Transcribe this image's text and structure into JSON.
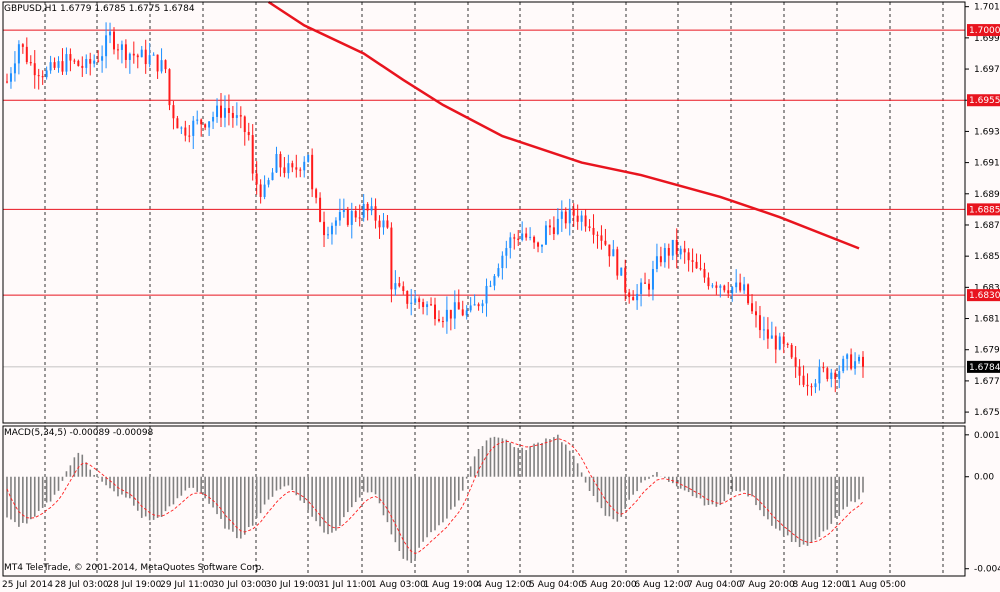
{
  "header": {
    "symbol_text": "GBPUSD,H1  1.6779 1.6785 1.6775 1.6784",
    "macd_text": "MACD(5,34,5) -0.00089 -0.00098",
    "copyright": "MT4 TeleTrade, © 2001-2014, MetaQuotes Software Corp."
  },
  "colors": {
    "background": "#fffafa",
    "bull_candle": "#1e8fff",
    "bear_candle": "#ff1a1a",
    "ma_line": "#e8141e",
    "level_line": "#e8141e",
    "grid": "#000000",
    "histogram": "#808080",
    "signal_line": "#ff2020"
  },
  "chart_data": [
    {
      "type": "candlestick",
      "title": "GBPUSD,H1",
      "timeframe": "H1",
      "ylim": [
        1.6748,
        1.7018
      ],
      "price_ticks": [
        "1.7015",
        "1.6995",
        "1.6975",
        "1.6955",
        "1.6935",
        "1.6915",
        "1.6895",
        "1.6875",
        "1.6855",
        "1.6835",
        "1.6815",
        "1.6795",
        "1.6775",
        "1.6755"
      ],
      "time_ticks": [
        "25 Jul 2014",
        "28 Jul 03:00",
        "28 Jul 19:00",
        "29 Jul 11:00",
        "30 Jul 03:00",
        "30 Jul 19:00",
        "31 Jul 11:00",
        "1 Aug 03:00",
        "1 Aug 19:00",
        "4 Aug 12:00",
        "5 Aug 04:00",
        "5 Aug 20:00",
        "6 Aug 12:00",
        "7 Aug 04:00",
        "7 Aug 20:00",
        "8 Aug 12:00",
        "11 Aug 05:00"
      ],
      "last_ohlc": {
        "open": 1.6779,
        "high": 1.6785,
        "low": 1.6775,
        "close": 1.6784
      },
      "current_price": "1.6784",
      "horizontal_levels": [
        "1.7000",
        "1.6955",
        "1.6885",
        "1.6830"
      ],
      "moving_average": {
        "start": [
          66,
          1.7018
        ],
        "points": [
          [
            66,
            1.7018
          ],
          [
            75,
            1.7003
          ],
          [
            90,
            1.6985
          ],
          [
            100,
            1.6968
          ],
          [
            110,
            1.6952
          ],
          [
            125,
            1.6932
          ],
          [
            145,
            1.6915
          ],
          [
            160,
            1.6907
          ],
          [
            180,
            1.6893
          ],
          [
            195,
            1.688
          ],
          [
            215,
            1.686
          ]
        ]
      },
      "close_path": [
        [
          0,
          1.6967
        ],
        [
          3,
          1.6992
        ],
        [
          6,
          1.6978
        ],
        [
          10,
          1.6972
        ],
        [
          15,
          1.698
        ],
        [
          20,
          1.6976
        ],
        [
          24,
          1.6986
        ],
        [
          26,
          1.6996
        ],
        [
          29,
          1.6988
        ],
        [
          33,
          1.6983
        ],
        [
          36,
          1.6982
        ],
        [
          40,
          1.6975
        ],
        [
          41,
          1.6952
        ],
        [
          44,
          1.6936
        ],
        [
          48,
          1.694
        ],
        [
          52,
          1.6945
        ],
        [
          55,
          1.695
        ],
        [
          58,
          1.6942
        ],
        [
          61,
          1.6932
        ],
        [
          62,
          1.6905
        ],
        [
          65,
          1.6895
        ],
        [
          68,
          1.6915
        ],
        [
          72,
          1.6908
        ],
        [
          76,
          1.6922
        ],
        [
          77,
          1.6895
        ],
        [
          80,
          1.6873
        ],
        [
          83,
          1.6878
        ],
        [
          86,
          1.688
        ],
        [
          90,
          1.6885
        ],
        [
          94,
          1.6878
        ],
        [
          96,
          1.6872
        ],
        [
          97,
          1.6838
        ],
        [
          100,
          1.6828
        ],
        [
          104,
          1.6826
        ],
        [
          107,
          1.6822
        ],
        [
          110,
          1.6818
        ],
        [
          114,
          1.682
        ],
        [
          117,
          1.6818
        ],
        [
          120,
          1.683
        ],
        [
          124,
          1.6852
        ],
        [
          127,
          1.6865
        ],
        [
          130,
          1.687
        ],
        [
          134,
          1.6858
        ],
        [
          136,
          1.6872
        ],
        [
          140,
          1.6878
        ],
        [
          143,
          1.6882
        ],
        [
          147,
          1.6878
        ],
        [
          150,
          1.6868
        ],
        [
          153,
          1.6855
        ],
        [
          156,
          1.6835
        ],
        [
          159,
          1.683
        ],
        [
          162,
          1.6838
        ],
        [
          165,
          1.6855
        ],
        [
          168,
          1.686
        ],
        [
          171,
          1.6855
        ],
        [
          174,
          1.6845
        ],
        [
          177,
          1.684
        ],
        [
          180,
          1.6838
        ],
        [
          183,
          1.6835
        ],
        [
          186,
          1.6832
        ],
        [
          188,
          1.6818
        ],
        [
          191,
          1.6805
        ],
        [
          194,
          1.68
        ],
        [
          197,
          1.6793
        ],
        [
          199,
          1.678
        ],
        [
          202,
          1.6776
        ],
        [
          206,
          1.678
        ],
        [
          210,
          1.6783
        ],
        [
          213,
          1.6788
        ],
        [
          216,
          1.6784
        ]
      ]
    },
    {
      "type": "bar",
      "title": "MACD(5,34,5)",
      "series": [
        {
          "name": "MACD",
          "values": [
            -0.0019,
            -0.0022,
            -0.002,
            -0.0014,
            -0.0008,
            0.0004,
            0.0012,
            0.0002,
            -0.0004,
            -0.0008,
            -0.001,
            -0.0018,
            -0.002,
            -0.0016,
            -0.001,
            -0.0004,
            -0.0008,
            -0.0016,
            -0.0024,
            -0.0028,
            -0.0022,
            -0.0014,
            -0.0006,
            -0.0004,
            -0.001,
            -0.0018,
            -0.0026,
            -0.0024,
            -0.0014,
            -0.0008,
            -0.0006,
            -0.002,
            -0.0034,
            -0.004,
            -0.003,
            -0.0024,
            -0.0018,
            -0.001,
            0.0006,
            0.0016,
            0.0019,
            0.0016,
            0.0012,
            0.0014,
            0.0017,
            0.0019,
            0.0012,
            0.0002,
            -0.001,
            -0.0018,
            -0.002,
            -0.001,
            -0.0002,
            0.0002,
            -0.0002,
            -0.0006,
            -0.0008,
            -0.0012,
            -0.0014,
            -0.0008,
            -0.0006,
            -0.001,
            -0.0018,
            -0.0024,
            -0.0028,
            -0.0032,
            -0.003,
            -0.0024,
            -0.0018,
            -0.0012,
            -0.0008
          ]
        },
        {
          "name": "Signal",
          "values": []
        }
      ],
      "value_ticks": [
        "0.0019",
        "0.00",
        "-0.00417"
      ],
      "ylim": [
        -0.0045,
        0.0023
      ]
    }
  ]
}
